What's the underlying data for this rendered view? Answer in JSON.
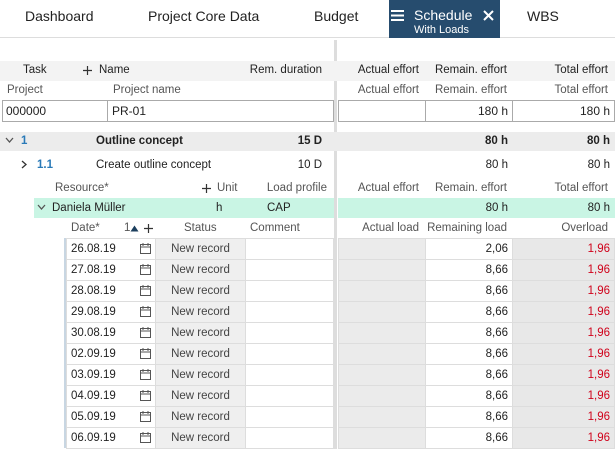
{
  "tabs": [
    "Dashboard",
    "Project Core Data",
    "Budget",
    "WBS"
  ],
  "active_tab": {
    "label": "Schedule",
    "sublabel": "With Loads"
  },
  "header": {
    "task": "Task",
    "name": "Name",
    "rem_duration": "Rem. duration",
    "actual_effort": "Actual effort",
    "remain_effort": "Remain. effort",
    "total_effort": "Total effort"
  },
  "project": {
    "labels": {
      "project": "Project",
      "project_name": "Project name",
      "actual_effort": "Actual effort",
      "remain_effort": "Remain. effort",
      "total_effort": "Total effort"
    },
    "project": "000000",
    "project_name": "PR-01",
    "actual_effort": "",
    "remain_effort": "180 h",
    "total_effort": "180 h"
  },
  "tasks": [
    {
      "id": "1",
      "name": "Outline concept",
      "rem_duration": "15 D",
      "remain_effort": "80 h",
      "total_effort": "80 h"
    },
    {
      "id": "1.1",
      "name": "Create outline concept",
      "rem_duration": "10 D",
      "remain_effort": "80 h",
      "total_effort": "80 h"
    }
  ],
  "resource_header": {
    "resource": "Resource*",
    "unit": "Unit",
    "load_profile": "Load profile",
    "actual_effort": "Actual effort",
    "remain_effort": "Remain. effort",
    "total_effort": "Total effort"
  },
  "resource": {
    "name": "Daniela Müller",
    "unit": "h",
    "load_profile": "CAP",
    "remain_effort": "80 h",
    "total_effort": "80 h"
  },
  "load_header": {
    "date": "Date*",
    "sort": "1",
    "status": "Status",
    "comment": "Comment",
    "actual_load": "Actual load",
    "remaining_load": "Remaining load",
    "overload": "Overload"
  },
  "loads": [
    {
      "date": "26.08.19",
      "status": "New record",
      "remaining_load": "2,06",
      "overload": "1,96"
    },
    {
      "date": "27.08.19",
      "status": "New record",
      "remaining_load": "8,66",
      "overload": "1,96"
    },
    {
      "date": "28.08.19",
      "status": "New record",
      "remaining_load": "8,66",
      "overload": "1,96"
    },
    {
      "date": "29.08.19",
      "status": "New record",
      "remaining_load": "8,66",
      "overload": "1,96"
    },
    {
      "date": "30.08.19",
      "status": "New record",
      "remaining_load": "8,66",
      "overload": "1,96"
    },
    {
      "date": "02.09.19",
      "status": "New record",
      "remaining_load": "8,66",
      "overload": "1,96"
    },
    {
      "date": "03.09.19",
      "status": "New record",
      "remaining_load": "8,66",
      "overload": "1,96"
    },
    {
      "date": "04.09.19",
      "status": "New record",
      "remaining_load": "8,66",
      "overload": "1,96"
    },
    {
      "date": "05.09.19",
      "status": "New record",
      "remaining_load": "8,66",
      "overload": "1,96"
    },
    {
      "date": "06.09.19",
      "status": "New record",
      "remaining_load": "8,66",
      "overload": "1,96"
    }
  ]
}
